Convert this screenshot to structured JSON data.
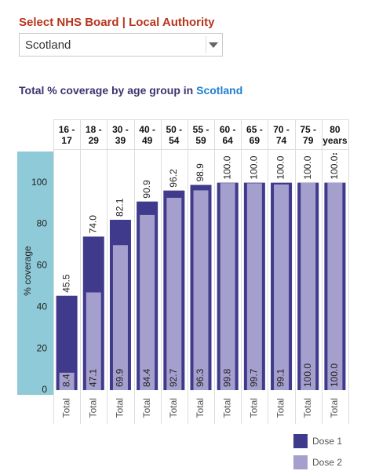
{
  "selector": {
    "label": "Select NHS Board | Local Authority",
    "value": "Scotland"
  },
  "chart_data": {
    "type": "bar",
    "title": "Total % coverage by age group in",
    "title_highlight": "Scotland",
    "y_label": "% coverage",
    "x_sublabel": "Total",
    "categories": [
      "16 - 17",
      "18 - 29",
      "30 - 39",
      "40 - 49",
      "50 - 54",
      "55 - 59",
      "60 - 64",
      "65 - 69",
      "70 - 74",
      "75 - 79",
      "80 years.."
    ],
    "series": [
      {
        "name": "Dose 1",
        "color": "#3f3a8b",
        "values": [
          45.5,
          74.0,
          82.1,
          90.9,
          96.2,
          98.9,
          100,
          100,
          100,
          100,
          100
        ],
        "value_labels": [
          "45.5",
          "74.0",
          "82.1",
          "90.9",
          "96.2",
          "98.9",
          "100.0",
          "100.0",
          "100.0",
          "100.0",
          "100.0"
        ]
      },
      {
        "name": "Dose 2",
        "color": "#a59fcd",
        "values": [
          8.4,
          47.1,
          69.9,
          84.4,
          92.7,
          96.3,
          99.8,
          99.7,
          99.1,
          100,
          100
        ],
        "value_labels": [
          "8.4",
          "47.1",
          "69.9",
          "84.4",
          "92.7",
          "96.3",
          "99.8",
          "99.7",
          "99.1",
          "100.0",
          "100.0"
        ]
      }
    ],
    "ylim": [
      0,
      115
    ],
    "yticks": [
      0,
      20,
      40,
      60,
      80,
      100
    ]
  }
}
